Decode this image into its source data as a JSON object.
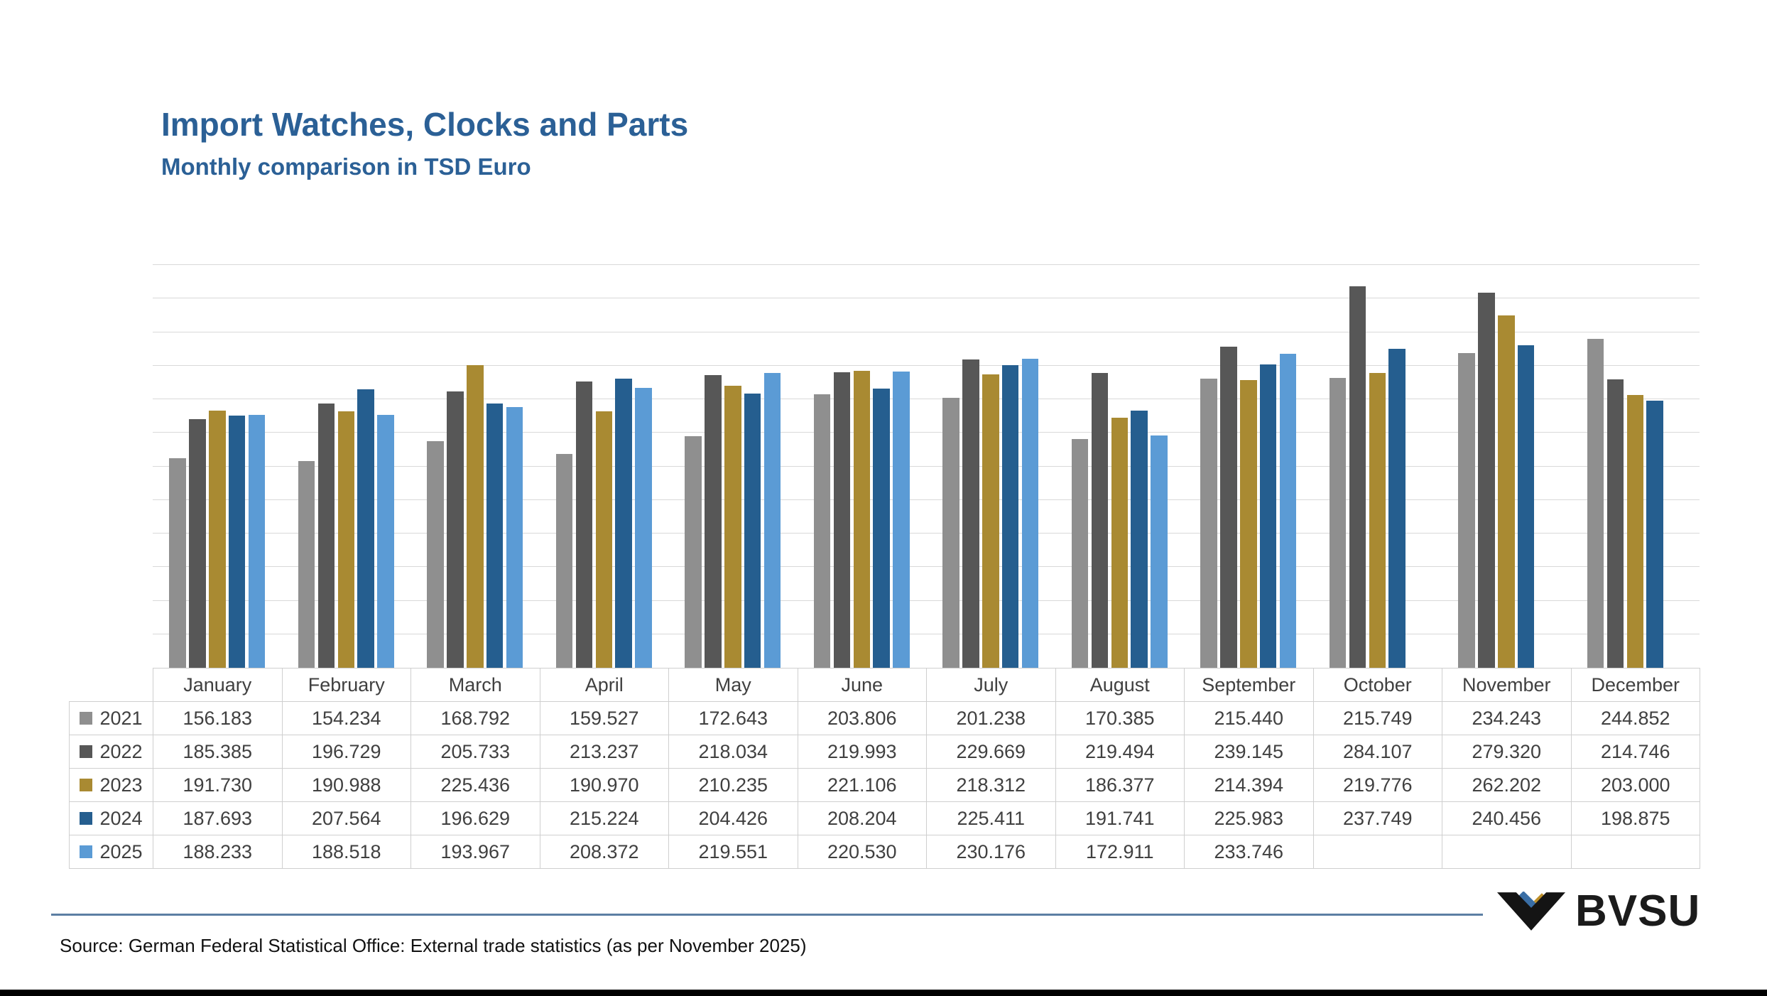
{
  "title": "Import Watches, Clocks and Parts",
  "subtitle": "Monthly comparison in TSD Euro",
  "source": "Source: German Federal Statistical Office: External trade statistics (as per November 2025)",
  "logo": {
    "text": "BVSU",
    "mark_colors": {
      "chevron": "#141414",
      "diamond_blue": "#3A6EA5",
      "diamond_gold": "#BE8F28"
    }
  },
  "accent_colors": {
    "title_blue": "#2B6096",
    "divider_blue": "#5C7EA3",
    "gridline": "#D9D9D9",
    "table_border": "#CFCFCF",
    "table_text": "#404040"
  },
  "chart_data": {
    "type": "bar",
    "title": "Import Watches, Clocks and Parts",
    "subtitle": "Monthly comparison in TSD Euro",
    "unit": "TSD Euro",
    "categories": [
      "January",
      "February",
      "March",
      "April",
      "May",
      "June",
      "July",
      "August",
      "September",
      "October",
      "November",
      "December"
    ],
    "series": [
      {
        "name": "2021",
        "color": "#8F8F8F",
        "values": [
          "156.183",
          "154.234",
          "168.792",
          "159.527",
          "172.643",
          "203.806",
          "201.238",
          "170.385",
          "215.440",
          "215.749",
          "234.243",
          "244.852"
        ]
      },
      {
        "name": "2022",
        "color": "#575757",
        "values": [
          "185.385",
          "196.729",
          "205.733",
          "213.237",
          "218.034",
          "219.993",
          "229.669",
          "219.494",
          "239.145",
          "284.107",
          "279.320",
          "214.746"
        ]
      },
      {
        "name": "2023",
        "color": "#A98A32",
        "values": [
          "191.730",
          "190.988",
          "225.436",
          "190.970",
          "210.235",
          "221.106",
          "218.312",
          "186.377",
          "214.394",
          "219.776",
          "262.202",
          "203.000"
        ]
      },
      {
        "name": "2024",
        "color": "#255E8F",
        "values": [
          "187.693",
          "207.564",
          "196.629",
          "215.224",
          "204.426",
          "208.204",
          "225.411",
          "191.741",
          "225.983",
          "237.749",
          "240.456",
          "198.875"
        ]
      },
      {
        "name": "2025",
        "color": "#5B9BD5",
        "values": [
          "188.233",
          "188.518",
          "193.967",
          "208.372",
          "219.551",
          "220.530",
          "230.176",
          "172.911",
          "233.746",
          null,
          null,
          null
        ]
      }
    ],
    "ylim": [
      0,
      300
    ],
    "grid_interval": 25,
    "y_axis_labels": false,
    "grid": true,
    "legend_position": "table-left-column"
  }
}
